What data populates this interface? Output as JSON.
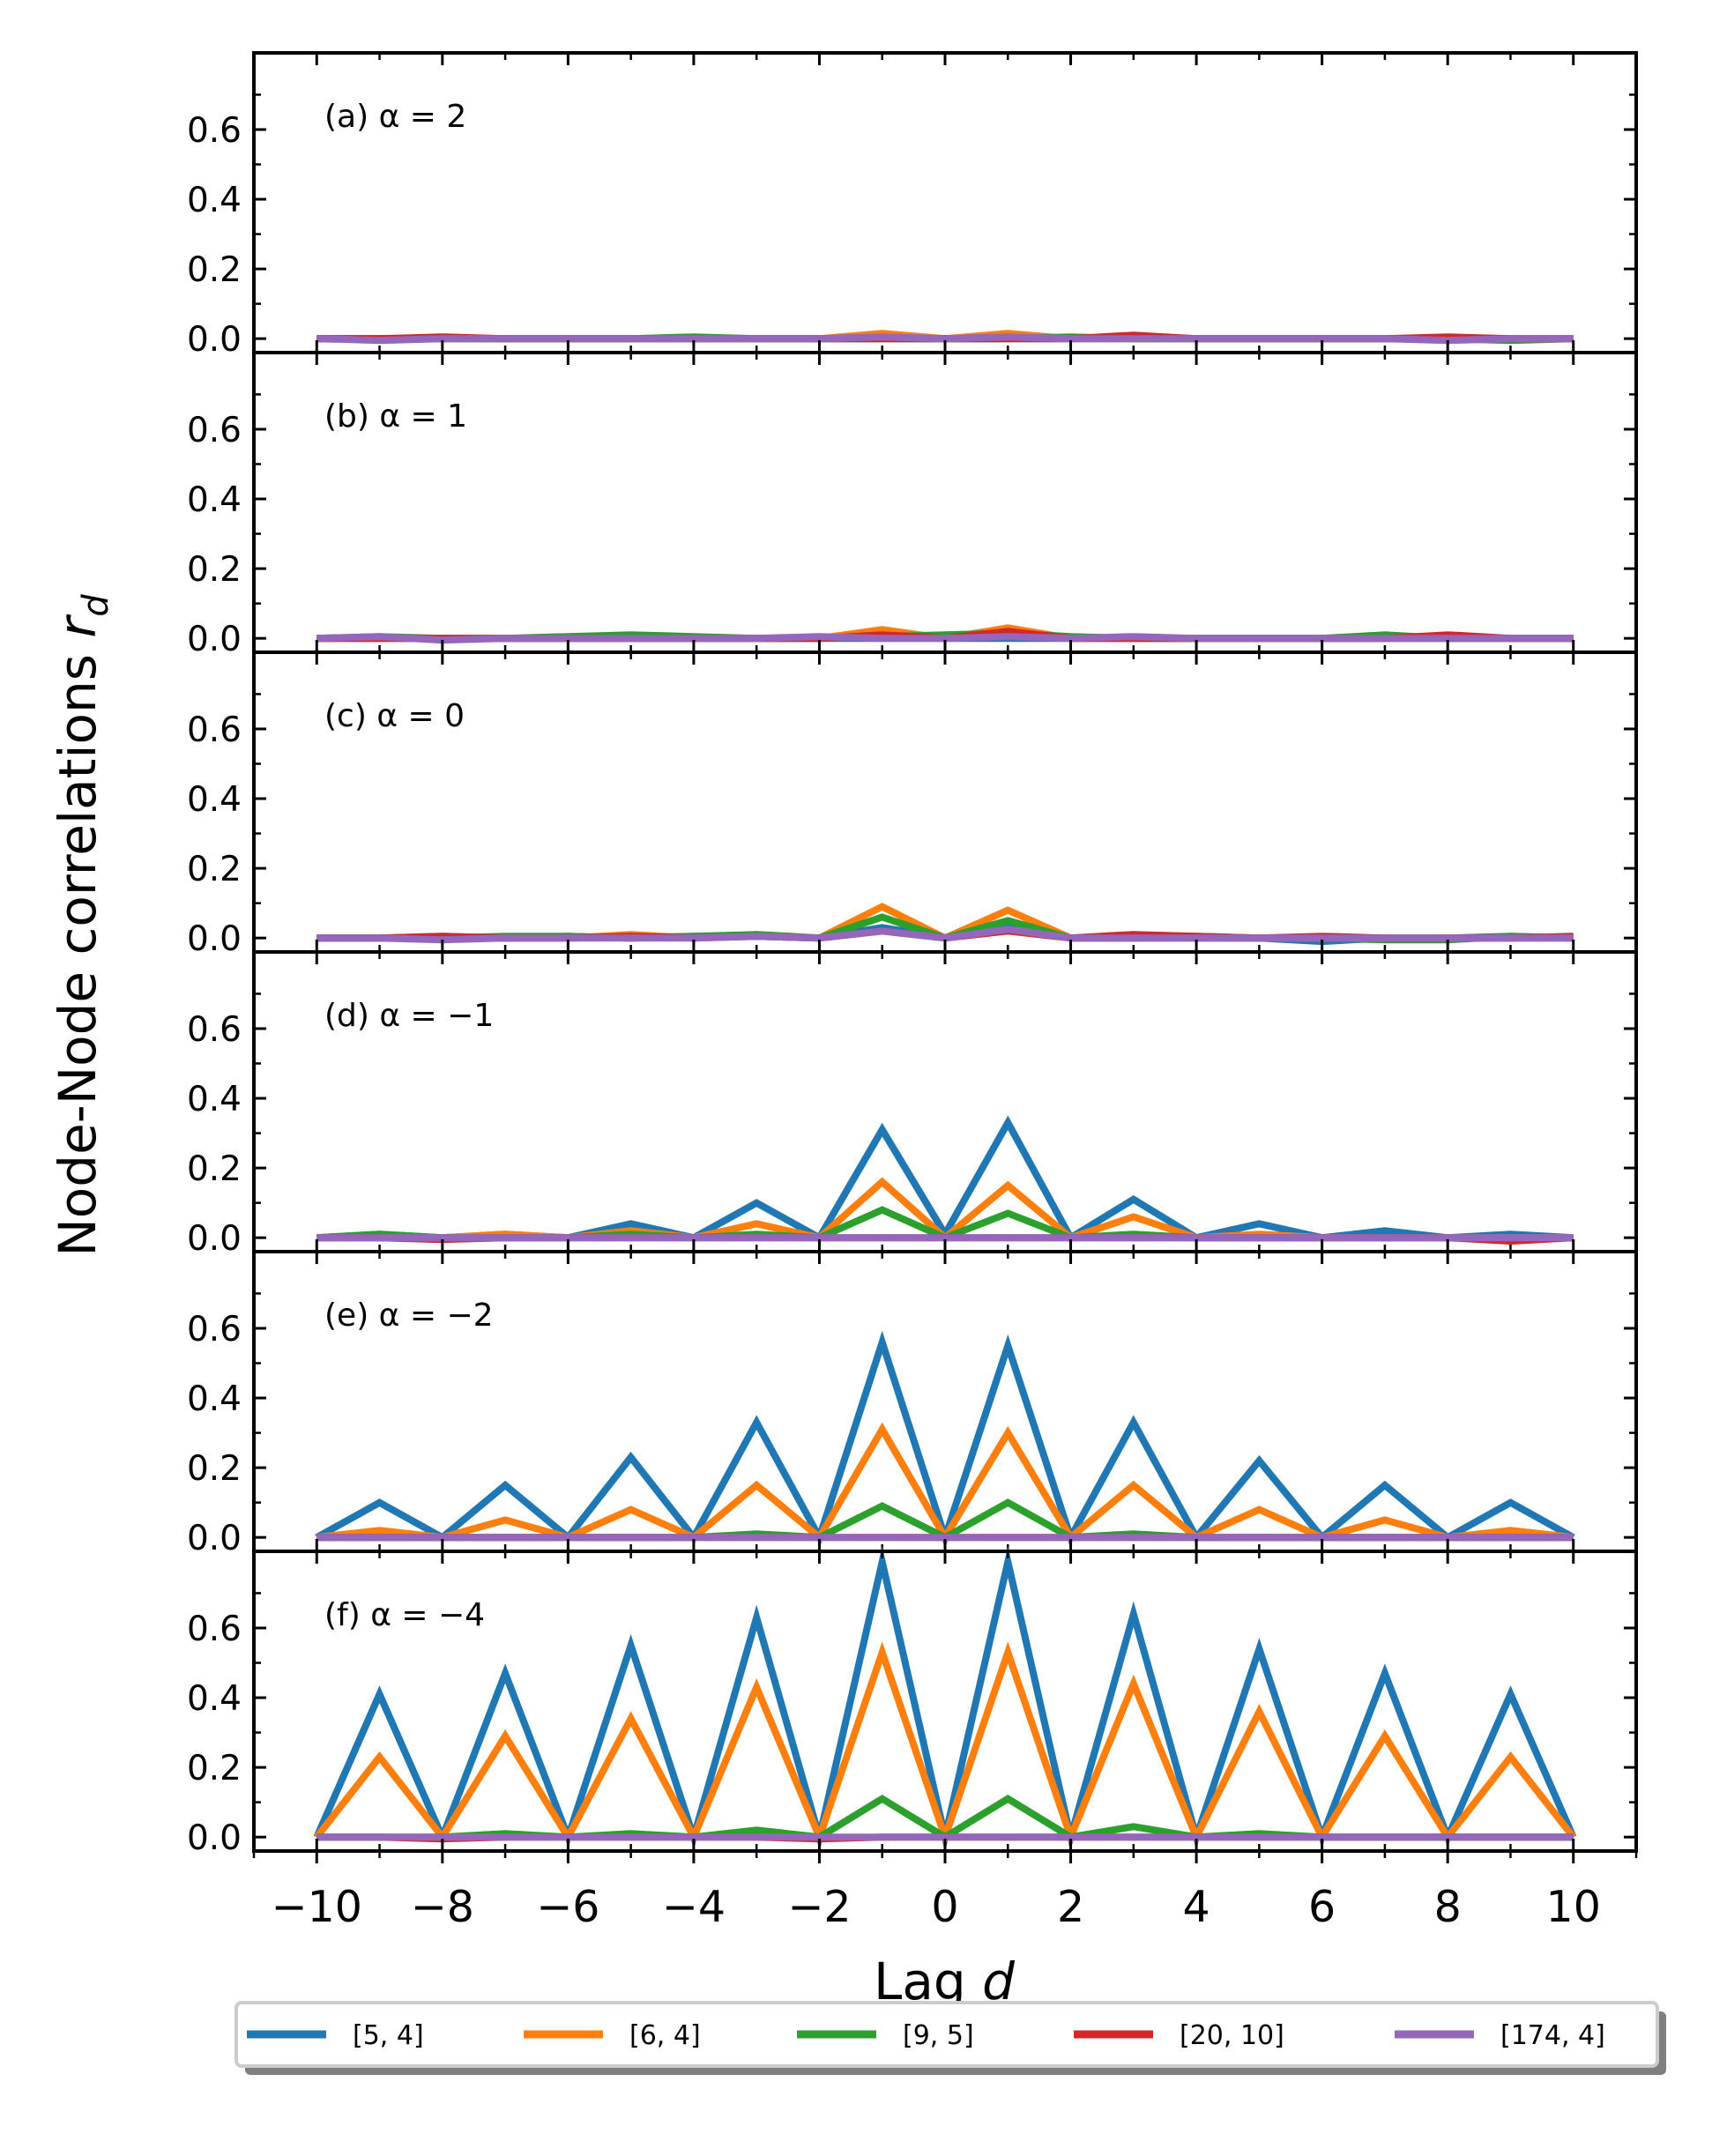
{
  "figure": {
    "ylabel": "Node-Node correlations r_d",
    "xlabel": "Lag d",
    "legend_shadow_color": "#7f7f7f"
  },
  "chart_data": {
    "type": "line",
    "xlabel": "Lag d",
    "ylabel": "Node-Node correlations r_d",
    "xlim": [
      -11,
      11
    ],
    "ylim": [
      -0.04,
      0.82
    ],
    "x": [
      -10,
      -9,
      -8,
      -7,
      -6,
      -5,
      -4,
      -3,
      -2,
      -1,
      0,
      1,
      2,
      3,
      4,
      5,
      6,
      7,
      8,
      9,
      10
    ],
    "xticks": [
      -10,
      -8,
      -6,
      -4,
      -2,
      0,
      2,
      4,
      6,
      8,
      10
    ],
    "xtick_labels": [
      "−10",
      "−8",
      "−6",
      "−4",
      "−2",
      "0",
      "2",
      "4",
      "6",
      "8",
      "10"
    ],
    "yticks": [
      0.0,
      0.2,
      0.4,
      0.6
    ],
    "ytick_labels": [
      "0.0",
      "0.2",
      "0.4",
      "0.6"
    ],
    "legend": [
      "[5, 4]",
      "[6, 4]",
      "[9, 5]",
      "[20, 10]",
      "[174, 4]"
    ],
    "colors": [
      "#1f77b4",
      "#ff7f0e",
      "#2ca02c",
      "#d62728",
      "#9467bd"
    ],
    "panels": [
      {
        "label": "(a) α = 2",
        "series": [
          {
            "name": "[5, 4]",
            "values": [
              0.0,
              0.0,
              0.0,
              0.0,
              0.0,
              0.0,
              0.0,
              0.0,
              0.0,
              0.0,
              0.0,
              0.0,
              0.0,
              0.0,
              0.0,
              0.0,
              0.0,
              0.0,
              0.0,
              0.0,
              0.0
            ]
          },
          {
            "name": "[6, 4]",
            "values": [
              0.0,
              0.0,
              0.0,
              0.0,
              0.0,
              0.0,
              0.0,
              0.0,
              0.0,
              0.015,
              0.0,
              0.015,
              0.0,
              0.0,
              0.0,
              0.0,
              0.0,
              0.0,
              0.0,
              0.0,
              0.0
            ]
          },
          {
            "name": "[9, 5]",
            "values": [
              0.0,
              0.0,
              0.0,
              0.0,
              0.0,
              0.0,
              0.005,
              0.0,
              0.0,
              0.0,
              0.0,
              0.0,
              0.005,
              0.0,
              0.0,
              0.0,
              0.0,
              0.0,
              0.0,
              -0.005,
              0.0
            ]
          },
          {
            "name": "[20, 10]",
            "values": [
              0.0,
              0.0,
              0.005,
              0.0,
              0.0,
              0.0,
              0.0,
              0.0,
              0.0,
              0.0,
              0.0,
              0.0,
              0.0,
              0.01,
              0.0,
              0.0,
              0.0,
              0.0,
              0.005,
              0.0,
              0.0
            ]
          },
          {
            "name": "[174, 4]",
            "values": [
              0.0,
              -0.005,
              0.0,
              0.0,
              0.0,
              0.0,
              0.0,
              0.0,
              0.0,
              0.005,
              0.0,
              0.005,
              0.0,
              0.0,
              0.0,
              0.0,
              0.0,
              0.0,
              -0.005,
              0.0,
              0.0
            ]
          }
        ]
      },
      {
        "label": "(b) α = 1",
        "series": [
          {
            "name": "[5, 4]",
            "values": [
              0.0,
              0.0,
              0.0,
              0.0,
              0.0,
              0.0,
              0.0,
              0.0,
              0.0,
              0.0,
              0.0,
              0.0,
              0.0,
              0.0,
              0.0,
              0.0,
              0.0,
              0.0,
              0.0,
              0.0,
              0.0
            ]
          },
          {
            "name": "[6, 4]",
            "values": [
              0.0,
              0.0,
              0.0,
              0.0,
              0.0,
              0.0,
              0.0,
              0.0,
              0.0,
              0.025,
              0.0,
              0.03,
              0.0,
              0.0,
              0.0,
              0.0,
              0.0,
              0.0,
              0.0,
              0.0,
              0.0
            ]
          },
          {
            "name": "[9, 5]",
            "values": [
              0.0,
              0.005,
              0.0,
              0.0,
              0.005,
              0.01,
              0.005,
              0.0,
              0.0,
              0.005,
              0.01,
              0.015,
              0.005,
              0.0,
              0.0,
              0.0,
              0.0,
              0.01,
              0.0,
              0.0,
              0.0
            ]
          },
          {
            "name": "[20, 10]",
            "values": [
              0.0,
              0.0,
              0.0,
              0.0,
              0.0,
              0.0,
              0.0,
              0.0,
              0.0,
              0.01,
              0.0,
              0.02,
              0.0,
              0.0,
              0.0,
              0.0,
              0.0,
              0.0,
              0.01,
              0.0,
              0.0
            ]
          },
          {
            "name": "[174, 4]",
            "values": [
              0.0,
              0.005,
              -0.005,
              0.0,
              0.0,
              0.0,
              0.0,
              0.0,
              0.005,
              0.0,
              0.0,
              0.005,
              0.0,
              0.005,
              0.0,
              0.0,
              0.0,
              0.0,
              0.0,
              0.0,
              0.0
            ]
          }
        ]
      },
      {
        "label": "(c) α = 0",
        "series": [
          {
            "name": "[5, 4]",
            "values": [
              0.0,
              0.0,
              0.005,
              0.0,
              0.005,
              0.0,
              0.005,
              0.005,
              0.0,
              0.03,
              0.0,
              0.03,
              0.0,
              0.0,
              0.005,
              0.0,
              -0.01,
              0.0,
              0.0,
              0.005,
              0.0
            ]
          },
          {
            "name": "[6, 4]",
            "values": [
              0.0,
              0.0,
              0.0,
              0.0,
              0.0,
              0.01,
              0.0,
              0.01,
              0.0,
              0.09,
              0.0,
              0.08,
              0.0,
              0.01,
              0.0,
              0.0,
              0.0,
              0.0,
              0.0,
              0.0,
              0.0
            ]
          },
          {
            "name": "[9, 5]",
            "values": [
              0.0,
              0.0,
              0.0,
              0.005,
              0.005,
              0.0,
              0.005,
              0.01,
              0.0,
              0.06,
              0.0,
              0.05,
              0.0,
              0.0,
              0.0,
              0.0,
              0.0,
              -0.005,
              -0.005,
              0.005,
              0.0
            ]
          },
          {
            "name": "[20, 10]",
            "values": [
              0.0,
              0.0,
              0.005,
              0.0,
              0.0,
              0.005,
              0.0,
              0.005,
              0.0,
              0.02,
              0.0,
              0.02,
              0.0,
              0.01,
              0.005,
              0.0,
              0.005,
              0.0,
              0.0,
              0.0,
              0.005
            ]
          },
          {
            "name": "[174, 4]",
            "values": [
              0.0,
              0.0,
              -0.005,
              0.0,
              0.0,
              0.0,
              0.0,
              0.005,
              0.0,
              0.02,
              0.0,
              0.025,
              0.0,
              0.0,
              0.0,
              0.0,
              0.0,
              0.0,
              0.0,
              0.0,
              0.0
            ]
          }
        ]
      },
      {
        "label": "(d) α = −1",
        "series": [
          {
            "name": "[5, 4]",
            "values": [
              0.0,
              0.01,
              0.0,
              0.01,
              0.0,
              0.04,
              0.0,
              0.1,
              0.0,
              0.31,
              0.01,
              0.33,
              0.0,
              0.11,
              0.0,
              0.04,
              0.0,
              0.02,
              0.0,
              0.01,
              0.0
            ]
          },
          {
            "name": "[6, 4]",
            "values": [
              0.0,
              0.0,
              0.0,
              0.01,
              0.0,
              0.02,
              0.0,
              0.04,
              0.0,
              0.16,
              0.0,
              0.15,
              0.0,
              0.06,
              0.0,
              0.01,
              0.0,
              0.0,
              0.0,
              0.0,
              0.0
            ]
          },
          {
            "name": "[9, 5]",
            "values": [
              0.0,
              0.01,
              0.0,
              0.0,
              0.0,
              0.01,
              0.0,
              0.01,
              0.0,
              0.08,
              0.0,
              0.07,
              0.0,
              0.01,
              0.0,
              0.0,
              0.0,
              0.0,
              0.0,
              0.0,
              0.0
            ]
          },
          {
            "name": "[20, 10]",
            "values": [
              0.0,
              0.0,
              -0.005,
              0.0,
              0.0,
              0.0,
              0.0,
              0.0,
              0.0,
              0.0,
              0.0,
              0.0,
              0.0,
              0.0,
              0.0,
              0.0,
              0.0,
              0.0,
              0.0,
              -0.01,
              0.0
            ]
          },
          {
            "name": "[174, 4]",
            "values": [
              0.0,
              0.0,
              0.0,
              0.0,
              0.0,
              0.0,
              0.0,
              0.0,
              0.0,
              0.0,
              0.0,
              0.0,
              0.0,
              0.0,
              0.0,
              0.0,
              0.0,
              0.0,
              0.0,
              0.0,
              0.0
            ]
          }
        ]
      },
      {
        "label": "(e) α = −2",
        "series": [
          {
            "name": "[5, 4]",
            "values": [
              0.0,
              0.1,
              0.0,
              0.15,
              0.0,
              0.23,
              0.0,
              0.33,
              0.0,
              0.56,
              0.0,
              0.55,
              0.0,
              0.33,
              0.0,
              0.22,
              0.0,
              0.15,
              0.0,
              0.1,
              0.0
            ]
          },
          {
            "name": "[6, 4]",
            "values": [
              0.0,
              0.02,
              0.0,
              0.05,
              0.0,
              0.08,
              0.0,
              0.15,
              0.0,
              0.31,
              0.0,
              0.3,
              0.0,
              0.15,
              0.0,
              0.08,
              0.0,
              0.05,
              0.0,
              0.02,
              0.0
            ]
          },
          {
            "name": "[9, 5]",
            "values": [
              0.0,
              0.0,
              0.0,
              0.0,
              0.0,
              0.0,
              0.0,
              0.01,
              0.0,
              0.09,
              0.0,
              0.1,
              0.0,
              0.01,
              0.0,
              0.0,
              0.0,
              0.0,
              0.0,
              0.0,
              0.0
            ]
          },
          {
            "name": "[20, 10]",
            "values": [
              0.0,
              0.0,
              0.0,
              0.0,
              0.0,
              0.0,
              0.0,
              0.0,
              0.0,
              0.0,
              0.0,
              0.0,
              0.0,
              0.0,
              0.0,
              0.0,
              0.0,
              0.0,
              0.0,
              0.0,
              0.0
            ]
          },
          {
            "name": "[174, 4]",
            "values": [
              0.0,
              0.0,
              0.0,
              0.0,
              0.0,
              0.0,
              0.0,
              0.0,
              0.0,
              0.0,
              0.0,
              0.0,
              0.0,
              0.0,
              0.0,
              0.0,
              0.0,
              0.0,
              0.0,
              0.0,
              0.0
            ]
          }
        ]
      },
      {
        "label": "(f) α = −4",
        "series": [
          {
            "name": "[5, 4]",
            "values": [
              0.0,
              0.41,
              0.0,
              0.47,
              0.0,
              0.55,
              0.0,
              0.63,
              0.0,
              0.79,
              0.0,
              0.79,
              0.0,
              0.64,
              0.0,
              0.54,
              0.0,
              0.47,
              0.0,
              0.41,
              0.0
            ]
          },
          {
            "name": "[6, 4]",
            "values": [
              0.0,
              0.23,
              0.0,
              0.29,
              0.0,
              0.34,
              0.0,
              0.43,
              0.0,
              0.53,
              0.0,
              0.53,
              0.0,
              0.44,
              0.0,
              0.36,
              0.0,
              0.29,
              0.0,
              0.23,
              0.0
            ]
          },
          {
            "name": "[9, 5]",
            "values": [
              0.0,
              0.0,
              0.0,
              0.01,
              0.0,
              0.01,
              0.0,
              0.02,
              0.0,
              0.11,
              0.0,
              0.11,
              0.0,
              0.03,
              0.0,
              0.01,
              0.0,
              0.0,
              0.0,
              0.0,
              0.0
            ]
          },
          {
            "name": "[20, 10]",
            "values": [
              0.0,
              0.0,
              -0.005,
              0.0,
              0.0,
              0.0,
              0.0,
              0.0,
              -0.005,
              0.0,
              0.0,
              0.0,
              0.0,
              0.0,
              0.0,
              0.0,
              0.0,
              0.0,
              0.0,
              0.0,
              0.0
            ]
          },
          {
            "name": "[174, 4]",
            "values": [
              0.0,
              0.0,
              0.0,
              0.0,
              0.0,
              0.0,
              0.0,
              0.0,
              0.0,
              0.0,
              0.0,
              0.0,
              0.0,
              0.0,
              0.0,
              0.0,
              0.0,
              0.0,
              0.0,
              0.0,
              0.0
            ]
          }
        ]
      }
    ]
  }
}
